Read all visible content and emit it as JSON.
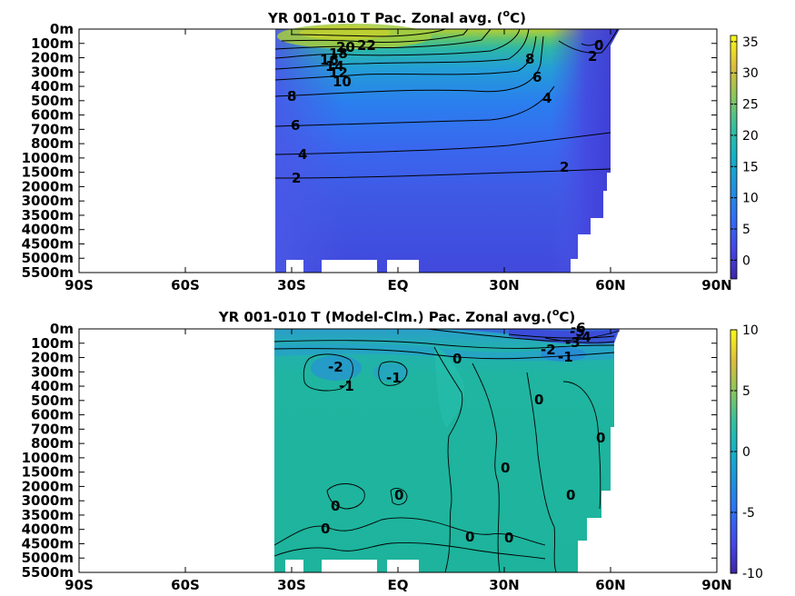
{
  "chart_data": [
    {
      "type": "heatmap",
      "title_main": "YR 001-010 T Pac. Zonal avg. (",
      "title_sup": "o",
      "title_end": "C)",
      "x_ticks": [
        "90S",
        "60S",
        "30S",
        "EQ",
        "30N",
        "60N",
        "90N"
      ],
      "y_ticks": [
        "0m",
        "100m",
        "200m",
        "300m",
        "400m",
        "500m",
        "600m",
        "700m",
        "800m",
        "1000m",
        "1500m",
        "2000m",
        "3000m",
        "3500m",
        "4000m",
        "4500m",
        "5000m",
        "5500m"
      ],
      "colorbar": {
        "min": -3,
        "max": 36,
        "ticks": [
          "35",
          "30",
          "25",
          "20",
          "15",
          "10",
          "5",
          "0"
        ],
        "tick_values": [
          35,
          30,
          25,
          20,
          15,
          10,
          5,
          0
        ]
      },
      "contour_labels": [
        "22",
        "20",
        "18",
        "16",
        "14",
        "12",
        "10",
        "8",
        "6",
        "4",
        "2",
        "0",
        "2",
        "6",
        "8",
        "4",
        "2"
      ],
      "colors": {
        "warm": "#a8d13a",
        "mid": "#2db3aa",
        "cool": "#4050d8",
        "deep": "#3e3bd0",
        "missing": "#ffffff"
      }
    },
    {
      "type": "heatmap",
      "title_main": "YR 001-010 T (Model-Clm.) Pac. Zonal avg.(",
      "title_sup": "o",
      "title_end": "C)",
      "x_ticks": [
        "90S",
        "60S",
        "30S",
        "EQ",
        "30N",
        "60N",
        "90N"
      ],
      "y_ticks": [
        "0m",
        "100m",
        "200m",
        "300m",
        "400m",
        "500m",
        "600m",
        "700m",
        "800m",
        "1000m",
        "1500m",
        "2000m",
        "3000m",
        "3500m",
        "4000m",
        "4500m",
        "5000m",
        "5500m"
      ],
      "colorbar": {
        "min": -10,
        "max": 10,
        "ticks": [
          "10",
          "5",
          "0",
          "-5",
          "-10"
        ],
        "tick_values": [
          10,
          5,
          0,
          -5,
          -10
        ]
      },
      "contour_labels": [
        "-2",
        "-1",
        "-1",
        "0",
        "0",
        "0",
        "0",
        "0",
        "0",
        "0",
        "0",
        "0",
        "0",
        "-2",
        "-1",
        "-3",
        "-4",
        "-5",
        "-6"
      ],
      "colors": {
        "zero": "#1fb0a0",
        "slight_neg": "#2aa7c2",
        "neg": "#3c55d8",
        "missing": "#ffffff"
      }
    }
  ]
}
